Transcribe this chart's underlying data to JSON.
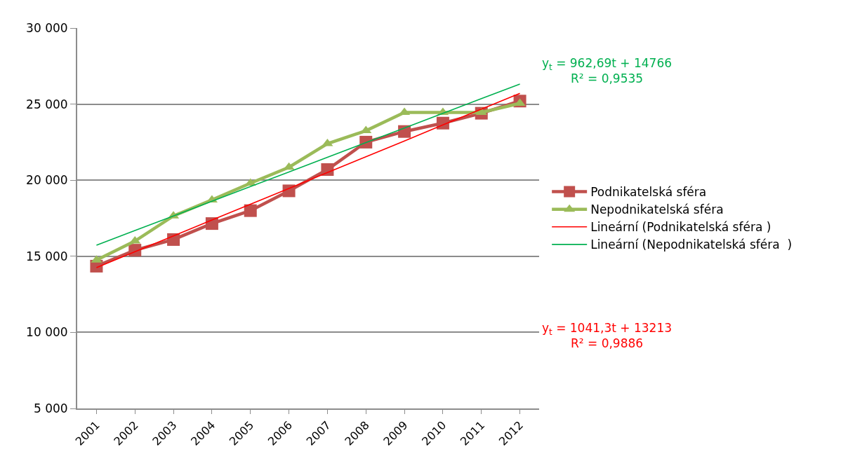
{
  "chart_data": {
    "type": "line",
    "categories": [
      "2001",
      "2002",
      "2003",
      "2004",
      "2005",
      "2006",
      "2007",
      "2008",
      "2009",
      "2010",
      "2011",
      "2012"
    ],
    "series": [
      {
        "name": "Podnikatelská sféra",
        "color": "#c0504d",
        "marker": "square",
        "values": [
          14350,
          15400,
          16100,
          17150,
          18000,
          19300,
          20700,
          22500,
          23200,
          23750,
          24400,
          25200
        ]
      },
      {
        "name": "Nepodnikatelská sféra",
        "color": "#9bbb59",
        "marker": "triangle",
        "values": [
          14750,
          16000,
          17650,
          18700,
          19800,
          20850,
          22400,
          23250,
          24450,
          24450,
          24450,
          25050
        ]
      },
      {
        "name": "Lineární (Podnikatelská sféra )",
        "color": "#ff0000",
        "marker": "none",
        "values": [
          14250,
          15300,
          16340,
          17380,
          18420,
          19460,
          20500,
          21540,
          22580,
          23630,
          24670,
          25710
        ]
      },
      {
        "name": "Lineární (Nepodnikatelská sféra  )",
        "color": "#00b050",
        "marker": "none",
        "values": [
          15730,
          16690,
          17650,
          18620,
          19580,
          20540,
          21510,
          22470,
          23430,
          24390,
          25360,
          26320
        ]
      }
    ],
    "ylim": [
      5000,
      30000
    ],
    "yticks": [
      {
        "value": 5000,
        "label": "5 000"
      },
      {
        "value": 10000,
        "label": "10 000"
      },
      {
        "value": 15000,
        "label": "15 000"
      },
      {
        "value": 20000,
        "label": "20 000"
      },
      {
        "value": 25000,
        "label": "25 000"
      },
      {
        "value": 30000,
        "label": "30 000"
      }
    ],
    "grid": "y",
    "legend": "right",
    "annotations": [
      "y$_{t}$ = 962,69t + 14766\nR² = 0,9535",
      "y$_{t}$ = 1041,3t + 13213\nR² = 0,9886"
    ]
  }
}
